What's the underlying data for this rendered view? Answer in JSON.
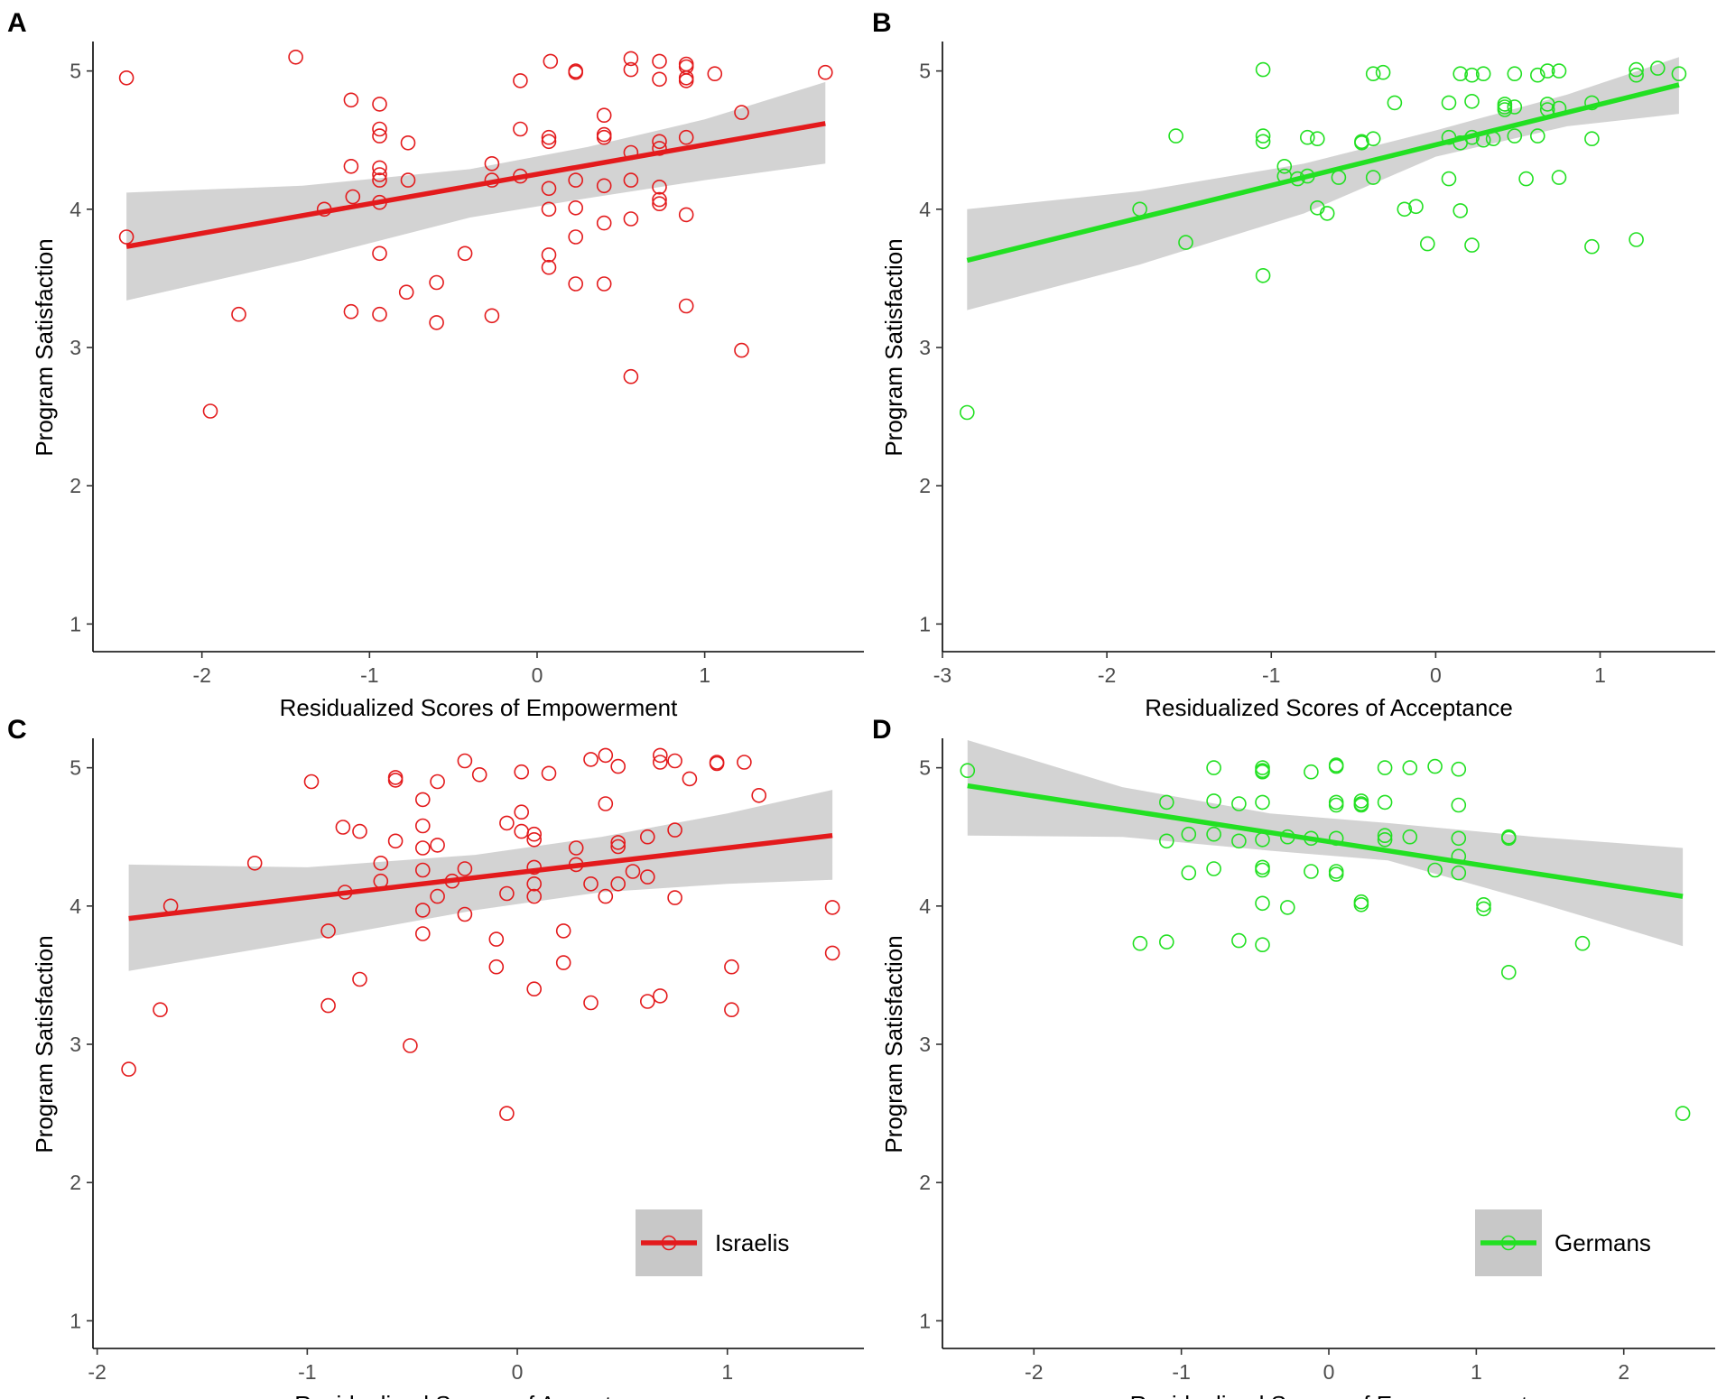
{
  "colors": {
    "israelis": "#e31a1c",
    "germans": "#22e022",
    "band": "#c8c8c8",
    "axis": "#000000"
  },
  "chart_data": [
    {
      "label": "A",
      "type": "scatter",
      "group": "israelis",
      "xlabel": "Residualized Scores of Empowerment",
      "ylabel": "Program Satisfaction",
      "xlim": [
        -2.65,
        1.95
      ],
      "ylim": [
        0.8,
        5.2
      ],
      "xticks": [
        -2,
        -1,
        0,
        1
      ],
      "xtick_labels": [
        "-2",
        "-1",
        "0",
        "1"
      ],
      "yticks": [
        1,
        2,
        3,
        4,
        5
      ],
      "ytick_labels": [
        "1",
        "2",
        "3",
        "4",
        "5"
      ],
      "fit": {
        "x": [
          -2.45,
          1.72
        ],
        "y": [
          3.73,
          4.62
        ]
      },
      "band": {
        "x": [
          -2.45,
          -1.4,
          -0.4,
          0.3,
          1.0,
          1.72
        ],
        "upper": [
          4.12,
          4.17,
          4.29,
          4.45,
          4.65,
          4.92
        ],
        "lower": [
          3.34,
          3.63,
          3.94,
          4.08,
          4.21,
          4.33
        ]
      },
      "points": [
        [
          -2.45,
          4.95
        ],
        [
          -2.45,
          3.8
        ],
        [
          -1.95,
          2.54
        ],
        [
          -1.78,
          3.24
        ],
        [
          -1.44,
          5.1
        ],
        [
          -1.27,
          4.0
        ],
        [
          -1.11,
          4.79
        ],
        [
          -1.11,
          4.31
        ],
        [
          -1.1,
          4.09
        ],
        [
          -1.11,
          3.26
        ],
        [
          -0.94,
          4.76
        ],
        [
          -0.94,
          4.58
        ],
        [
          -0.94,
          4.53
        ],
        [
          -0.94,
          4.3
        ],
        [
          -0.94,
          4.25
        ],
        [
          -0.94,
          4.21
        ],
        [
          -0.94,
          4.05
        ],
        [
          -0.94,
          3.68
        ],
        [
          -0.94,
          3.24
        ],
        [
          -0.77,
          4.48
        ],
        [
          -0.77,
          4.21
        ],
        [
          -0.78,
          3.4
        ],
        [
          -0.6,
          3.47
        ],
        [
          -0.6,
          3.18
        ],
        [
          -0.43,
          3.68
        ],
        [
          -0.27,
          4.33
        ],
        [
          -0.27,
          4.21
        ],
        [
          -0.27,
          3.23
        ],
        [
          -0.1,
          4.93
        ],
        [
          -0.1,
          4.58
        ],
        [
          -0.1,
          4.24
        ],
        [
          0.07,
          4.49
        ],
        [
          0.07,
          4.52
        ],
        [
          0.07,
          4.15
        ],
        [
          0.07,
          4.0
        ],
        [
          0.07,
          3.67
        ],
        [
          0.07,
          3.58
        ],
        [
          0.08,
          5.07
        ],
        [
          0.23,
          4.99
        ],
        [
          0.23,
          5.0
        ],
        [
          0.23,
          4.21
        ],
        [
          0.23,
          4.01
        ],
        [
          0.23,
          3.8
        ],
        [
          0.23,
          3.46
        ],
        [
          0.4,
          4.68
        ],
        [
          0.4,
          4.54
        ],
        [
          0.4,
          4.52
        ],
        [
          0.4,
          4.17
        ],
        [
          0.4,
          3.9
        ],
        [
          0.4,
          3.46
        ],
        [
          0.56,
          5.09
        ],
        [
          0.56,
          5.01
        ],
        [
          0.56,
          4.41
        ],
        [
          0.56,
          4.21
        ],
        [
          0.56,
          3.93
        ],
        [
          0.56,
          2.79
        ],
        [
          0.73,
          5.07
        ],
        [
          0.73,
          4.94
        ],
        [
          0.73,
          4.49
        ],
        [
          0.73,
          4.44
        ],
        [
          0.73,
          4.16
        ],
        [
          0.73,
          4.07
        ],
        [
          0.73,
          4.04
        ],
        [
          0.89,
          5.05
        ],
        [
          0.89,
          5.03
        ],
        [
          0.89,
          4.95
        ],
        [
          0.89,
          4.93
        ],
        [
          0.89,
          4.52
        ],
        [
          0.89,
          3.96
        ],
        [
          0.89,
          3.3
        ],
        [
          1.06,
          4.98
        ],
        [
          1.22,
          4.7
        ],
        [
          1.22,
          2.98
        ],
        [
          1.72,
          4.99
        ]
      ]
    },
    {
      "label": "B",
      "type": "scatter",
      "group": "germans",
      "xlabel": "Residualized Scores of Acceptance",
      "ylabel": "Program Satisfaction",
      "xlim": [
        -3.0,
        1.7
      ],
      "ylim": [
        0.8,
        5.2
      ],
      "xticks": [
        -3,
        -2,
        -1,
        0,
        1
      ],
      "xtick_labels": [
        "-3",
        "-2",
        "-1",
        "0",
        "1"
      ],
      "yticks": [
        1,
        2,
        3,
        4,
        5
      ],
      "ytick_labels": [
        "1",
        "2",
        "3",
        "4",
        "5"
      ],
      "fit": {
        "x": [
          -2.85,
          1.48
        ],
        "y": [
          3.63,
          4.9
        ]
      },
      "band": {
        "x": [
          -2.85,
          -1.8,
          -0.8,
          0,
          0.8,
          1.48
        ],
        "upper": [
          4.0,
          4.13,
          4.33,
          4.57,
          4.83,
          5.1
        ],
        "lower": [
          3.27,
          3.6,
          3.97,
          4.38,
          4.6,
          4.69
        ]
      },
      "points": [
        [
          -2.85,
          2.53
        ],
        [
          -1.8,
          4.0
        ],
        [
          -1.58,
          4.53
        ],
        [
          -1.52,
          3.76
        ],
        [
          -1.05,
          5.01
        ],
        [
          -1.05,
          4.53
        ],
        [
          -1.05,
          4.49
        ],
        [
          -1.05,
          3.52
        ],
        [
          -0.92,
          4.31
        ],
        [
          -0.92,
          4.24
        ],
        [
          -0.84,
          4.22
        ],
        [
          -0.78,
          4.52
        ],
        [
          -0.78,
          4.24
        ],
        [
          -0.72,
          4.51
        ],
        [
          -0.72,
          4.01
        ],
        [
          -0.66,
          3.97
        ],
        [
          -0.59,
          4.23
        ],
        [
          -0.45,
          4.49
        ],
        [
          -0.45,
          4.48
        ],
        [
          -0.38,
          4.98
        ],
        [
          -0.38,
          4.51
        ],
        [
          -0.38,
          4.23
        ],
        [
          -0.32,
          4.99
        ],
        [
          -0.25,
          4.77
        ],
        [
          -0.19,
          4.0
        ],
        [
          -0.12,
          4.02
        ],
        [
          -0.05,
          3.75
        ],
        [
          0.08,
          4.77
        ],
        [
          0.08,
          4.52
        ],
        [
          0.08,
          4.22
        ],
        [
          0.15,
          4.98
        ],
        [
          0.15,
          4.48
        ],
        [
          0.15,
          3.99
        ],
        [
          0.22,
          4.97
        ],
        [
          0.22,
          4.78
        ],
        [
          0.22,
          4.52
        ],
        [
          0.22,
          3.74
        ],
        [
          0.29,
          4.98
        ],
        [
          0.29,
          4.5
        ],
        [
          0.35,
          4.51
        ],
        [
          0.42,
          4.76
        ],
        [
          0.42,
          4.74
        ],
        [
          0.42,
          4.72
        ],
        [
          0.48,
          4.98
        ],
        [
          0.48,
          4.74
        ],
        [
          0.48,
          4.53
        ],
        [
          0.55,
          4.22
        ],
        [
          0.62,
          4.97
        ],
        [
          0.62,
          4.53
        ],
        [
          0.68,
          5.0
        ],
        [
          0.68,
          4.76
        ],
        [
          0.68,
          4.72
        ],
        [
          0.75,
          5.0
        ],
        [
          0.75,
          4.73
        ],
        [
          0.75,
          4.23
        ],
        [
          0.95,
          4.77
        ],
        [
          0.95,
          4.51
        ],
        [
          0.95,
          3.73
        ],
        [
          1.22,
          5.01
        ],
        [
          1.22,
          4.97
        ],
        [
          1.22,
          3.78
        ],
        [
          1.35,
          5.02
        ],
        [
          1.48,
          4.98
        ]
      ]
    },
    {
      "label": "C",
      "type": "scatter",
      "group": "israelis",
      "xlabel": "Residualized Scores of Acceptance",
      "ylabel": "Program Satisfaction",
      "xlim": [
        -2.02,
        1.65
      ],
      "ylim": [
        0.8,
        5.2
      ],
      "xticks": [
        -2,
        -1,
        0,
        1
      ],
      "xtick_labels": [
        "-2",
        "-1",
        "0",
        "1"
      ],
      "yticks": [
        1,
        2,
        3,
        4,
        5
      ],
      "ytick_labels": [
        "1",
        "2",
        "3",
        "4",
        "5"
      ],
      "fit": {
        "x": [
          -1.85,
          1.5
        ],
        "y": [
          3.91,
          4.51
        ]
      },
      "band": {
        "x": [
          -1.85,
          -1.0,
          -0.2,
          0.4,
          1.0,
          1.5
        ],
        "upper": [
          4.3,
          4.28,
          4.37,
          4.5,
          4.67,
          4.84
        ],
        "lower": [
          3.53,
          3.75,
          3.97,
          4.1,
          4.16,
          4.19
        ]
      },
      "points": [
        [
          -1.85,
          2.82
        ],
        [
          -1.7,
          3.25
        ],
        [
          -1.65,
          4.0
        ],
        [
          -1.25,
          4.31
        ],
        [
          -0.98,
          4.9
        ],
        [
          -0.9,
          3.82
        ],
        [
          -0.9,
          3.28
        ],
        [
          -0.83,
          4.57
        ],
        [
          -0.82,
          4.1
        ],
        [
          -0.75,
          4.54
        ],
        [
          -0.75,
          3.47
        ],
        [
          -0.65,
          4.31
        ],
        [
          -0.65,
          4.18
        ],
        [
          -0.58,
          4.93
        ],
        [
          -0.58,
          4.91
        ],
        [
          -0.58,
          4.47
        ],
        [
          -0.51,
          2.99
        ],
        [
          -0.45,
          4.77
        ],
        [
          -0.45,
          4.58
        ],
        [
          -0.45,
          4.42
        ],
        [
          -0.45,
          4.26
        ],
        [
          -0.45,
          3.97
        ],
        [
          -0.45,
          3.8
        ],
        [
          -0.38,
          4.9
        ],
        [
          -0.38,
          4.44
        ],
        [
          -0.38,
          4.07
        ],
        [
          -0.31,
          4.18
        ],
        [
          -0.25,
          5.05
        ],
        [
          -0.25,
          4.27
        ],
        [
          -0.25,
          3.94
        ],
        [
          -0.18,
          4.95
        ],
        [
          -0.1,
          3.76
        ],
        [
          -0.1,
          3.56
        ],
        [
          -0.05,
          4.6
        ],
        [
          -0.05,
          4.09
        ],
        [
          -0.05,
          2.5
        ],
        [
          0.02,
          4.97
        ],
        [
          0.02,
          4.68
        ],
        [
          0.02,
          4.54
        ],
        [
          0.08,
          4.52
        ],
        [
          0.08,
          4.48
        ],
        [
          0.08,
          4.28
        ],
        [
          0.08,
          4.16
        ],
        [
          0.08,
          4.07
        ],
        [
          0.08,
          3.4
        ],
        [
          0.15,
          4.96
        ],
        [
          0.22,
          3.82
        ],
        [
          0.22,
          3.59
        ],
        [
          0.28,
          4.42
        ],
        [
          0.28,
          4.3
        ],
        [
          0.35,
          5.06
        ],
        [
          0.35,
          4.16
        ],
        [
          0.35,
          3.3
        ],
        [
          0.42,
          5.09
        ],
        [
          0.42,
          4.74
        ],
        [
          0.42,
          4.07
        ],
        [
          0.48,
          5.01
        ],
        [
          0.48,
          4.46
        ],
        [
          0.48,
          4.43
        ],
        [
          0.48,
          4.16
        ],
        [
          0.55,
          4.25
        ],
        [
          0.62,
          4.5
        ],
        [
          0.62,
          4.21
        ],
        [
          0.62,
          3.31
        ],
        [
          0.68,
          5.09
        ],
        [
          0.68,
          5.04
        ],
        [
          0.68,
          3.35
        ],
        [
          0.75,
          5.05
        ],
        [
          0.75,
          4.55
        ],
        [
          0.75,
          4.06
        ],
        [
          0.82,
          4.92
        ],
        [
          0.95,
          5.04
        ],
        [
          0.95,
          5.03
        ],
        [
          1.02,
          3.56
        ],
        [
          1.02,
          3.25
        ],
        [
          1.08,
          5.04
        ],
        [
          1.15,
          4.8
        ],
        [
          1.5,
          3.99
        ],
        [
          1.5,
          3.66
        ]
      ]
    },
    {
      "label": "D",
      "type": "scatter",
      "group": "germans",
      "xlabel": "Residualized Scores of Empowerment",
      "ylabel": "Program Satisfaction",
      "xlim": [
        -2.62,
        2.62
      ],
      "ylim": [
        0.8,
        5.2
      ],
      "xticks": [
        -2,
        -1,
        0,
        1,
        2
      ],
      "xtick_labels": [
        "-2",
        "-1",
        "0",
        "1",
        "2"
      ],
      "yticks": [
        1,
        2,
        3,
        4,
        5
      ],
      "ytick_labels": [
        "1",
        "2",
        "3",
        "4",
        "5"
      ],
      "fit": {
        "x": [
          -2.45,
          2.4
        ],
        "y": [
          4.87,
          4.07
        ]
      },
      "band": {
        "x": [
          -2.45,
          -1.4,
          -0.4,
          0.4,
          1.4,
          2.4
        ],
        "upper": [
          5.2,
          4.86,
          4.67,
          4.6,
          4.5,
          4.42
        ],
        "lower": [
          4.51,
          4.5,
          4.4,
          4.33,
          4.03,
          3.71
        ]
      },
      "points": [
        [
          -2.45,
          4.98
        ],
        [
          -1.28,
          3.73
        ],
        [
          -1.1,
          4.75
        ],
        [
          -1.1,
          4.47
        ],
        [
          -1.1,
          3.74
        ],
        [
          -0.95,
          4.52
        ],
        [
          -0.95,
          4.24
        ],
        [
          -0.78,
          5.0
        ],
        [
          -0.78,
          4.76
        ],
        [
          -0.78,
          4.52
        ],
        [
          -0.78,
          4.27
        ],
        [
          -0.61,
          4.74
        ],
        [
          -0.61,
          4.47
        ],
        [
          -0.61,
          3.75
        ],
        [
          -0.45,
          5.0
        ],
        [
          -0.45,
          4.98
        ],
        [
          -0.45,
          4.97
        ],
        [
          -0.45,
          4.75
        ],
        [
          -0.45,
          4.48
        ],
        [
          -0.45,
          4.28
        ],
        [
          -0.45,
          4.26
        ],
        [
          -0.45,
          4.02
        ],
        [
          -0.45,
          3.72
        ],
        [
          -0.28,
          4.5
        ],
        [
          -0.28,
          3.99
        ],
        [
          -0.12,
          4.97
        ],
        [
          -0.12,
          4.49
        ],
        [
          -0.12,
          4.25
        ],
        [
          0.05,
          5.02
        ],
        [
          0.05,
          5.01
        ],
        [
          0.05,
          4.75
        ],
        [
          0.05,
          4.73
        ],
        [
          0.05,
          4.49
        ],
        [
          0.05,
          4.25
        ],
        [
          0.05,
          4.23
        ],
        [
          0.22,
          4.76
        ],
        [
          0.22,
          4.74
        ],
        [
          0.22,
          4.73
        ],
        [
          0.22,
          4.03
        ],
        [
          0.22,
          4.01
        ],
        [
          0.38,
          5.0
        ],
        [
          0.38,
          4.75
        ],
        [
          0.38,
          4.51
        ],
        [
          0.38,
          4.48
        ],
        [
          0.55,
          5.0
        ],
        [
          0.55,
          4.5
        ],
        [
          0.72,
          5.01
        ],
        [
          0.72,
          4.26
        ],
        [
          0.88,
          4.99
        ],
        [
          0.88,
          4.73
        ],
        [
          0.88,
          4.49
        ],
        [
          0.88,
          4.36
        ],
        [
          0.88,
          4.24
        ],
        [
          1.05,
          4.01
        ],
        [
          1.05,
          3.98
        ],
        [
          1.22,
          4.5
        ],
        [
          1.22,
          4.49
        ],
        [
          1.22,
          3.52
        ],
        [
          1.72,
          3.73
        ],
        [
          2.4,
          2.5
        ]
      ]
    }
  ],
  "legends": {
    "israelis": {
      "label": "Israelis"
    },
    "germans": {
      "label": "Germans"
    }
  }
}
